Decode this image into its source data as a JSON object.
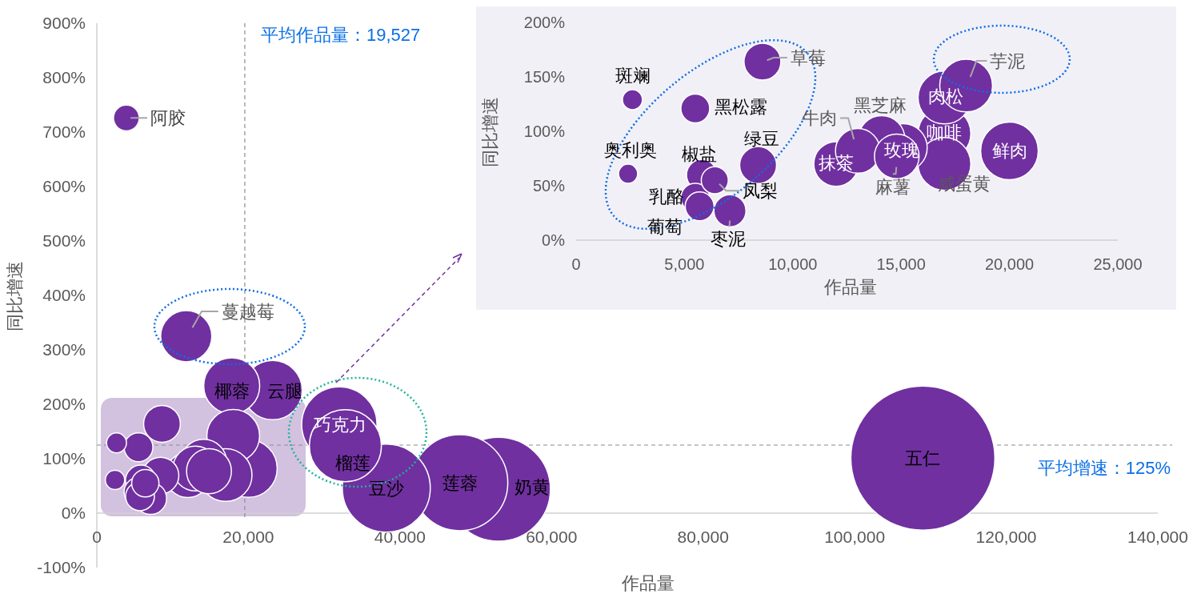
{
  "chart_data": [
    {
      "type": "bubble",
      "xlabel": "作品量",
      "ylabel": "同比增速",
      "color": "#7030a0",
      "x": [
        2600,
        2400,
        8600,
        5500,
        5800,
        6400,
        5500,
        5700,
        7100,
        8400,
        12000,
        13000,
        14100,
        14800,
        null,
        null,
        null,
        18000,
        17000,
        20000,
        3900,
        11800,
        17800,
        23200,
        32000,
        32800,
        38200,
        47900,
        53000,
        109000
      ],
      "values": [
        129,
        61,
        164,
        121,
        60,
        55,
        39,
        31,
        27,
        69,
        70,
        82,
        93,
        77,
        null,
        null,
        null,
        142,
        70,
        82,
        726,
        325,
        234,
        226,
        163,
        124,
        46,
        56,
        44,
        101
      ],
      "sizes": [
        0.019,
        0.018,
        0.065,
        0.04,
        0.045,
        0.036,
        0.04,
        0.04,
        0.049,
        0.065,
        0.097,
        0.097,
        0.104,
        0.097,
        null,
        null,
        null,
        0.134,
        0.134,
        0.16,
        0.032,
        0.126,
        0.151,
        0.169,
        0.273,
        0.25,
        0.373,
        0.444,
        0.52,
        1
      ],
      "xlim": [
        0,
        140000
      ],
      "ylim": [
        -100,
        900
      ],
      "xticks": [
        0,
        {
          "value": 20000,
          "label": "20,000"
        },
        {
          "value": 40000,
          "label": "40,000"
        },
        {
          "value": 60000,
          "label": "60,000"
        },
        {
          "value": 80000,
          "label": "80,000"
        },
        {
          "value": 100000,
          "label": "100,000"
        },
        {
          "value": 120000,
          "label": "120,000"
        },
        {
          "value": 140000,
          "label": "140,000"
        }
      ],
      "yticks": [
        {
          "value": -100,
          "label": "-100%"
        },
        {
          "value": 0,
          "label": "0%"
        },
        {
          "value": 100,
          "label": "100%"
        },
        {
          "value": 200,
          "label": "200%"
        },
        {
          "value": 300,
          "label": "300%"
        },
        {
          "value": 400,
          "label": "400%"
        },
        {
          "value": 500,
          "label": "500%"
        },
        {
          "value": 600,
          "label": "600%"
        },
        {
          "value": 700,
          "label": "700%"
        },
        {
          "value": 800,
          "label": "800%"
        },
        {
          "value": 900,
          "label": "900%"
        }
      ],
      "ref_lines": [
        {
          "axis": "x",
          "value": 19527,
          "label": "平均作品量：19,527"
        },
        {
          "axis": "y",
          "value": 125,
          "label": "平均增速：125%"
        }
      ],
      "annotations": [
        {
          "text": "阿胶",
          "x": 3900,
          "y": 726
        },
        {
          "text": "蔓越莓",
          "x": 11800,
          "y": 325
        },
        {
          "text": "椰蓉",
          "x": 17800,
          "y": 234
        },
        {
          "text": "云腿",
          "x": 23200,
          "y": 226
        },
        {
          "text": "巧克力",
          "x": 32000,
          "y": 163
        },
        {
          "text": "榴莲",
          "x": 32800,
          "y": 124
        },
        {
          "text": "豆沙",
          "x": 38200,
          "y": 46
        },
        {
          "text": "莲蓉",
          "x": 47900,
          "y": 56
        },
        {
          "text": "奶黄",
          "x": 53000,
          "y": 44
        },
        {
          "text": "五仁",
          "x": 109000,
          "y": 101
        }
      ]
    },
    {
      "type": "bubble",
      "xlabel": "作品量",
      "ylabel": "同比增速",
      "color": "#7030a0",
      "x": [
        2600,
        2400,
        8600,
        5500,
        5800,
        6400,
        5500,
        5700,
        7100,
        8400,
        12000,
        13000,
        14100,
        14800,
        15100,
        17000,
        17000,
        18000,
        17000,
        20000
      ],
      "values": [
        129,
        61,
        164,
        121,
        60,
        55,
        39,
        31,
        27,
        69,
        70,
        82,
        93,
        77,
        85,
        98,
        131,
        142,
        70,
        82
      ],
      "sizes": [
        0.12,
        0.11,
        0.41,
        0.25,
        0.28,
        0.22,
        0.25,
        0.25,
        0.31,
        0.41,
        0.6,
        0.6,
        0.65,
        0.6,
        0.69,
        0.84,
        0.84,
        0.84,
        0.84,
        1
      ],
      "xlim": [
        0,
        25000
      ],
      "ylim": [
        0,
        200
      ],
      "xticks": [
        0,
        {
          "value": 5000,
          "label": "5,000"
        },
        {
          "value": 10000,
          "label": "10,000"
        },
        {
          "value": 15000,
          "label": "15,000"
        },
        {
          "value": 20000,
          "label": "20,000"
        },
        {
          "value": 25000,
          "label": "25,000"
        }
      ],
      "yticks": [
        {
          "value": 0,
          "label": "0%"
        },
        {
          "value": 50,
          "label": "50%"
        },
        {
          "value": 100,
          "label": "100%"
        },
        {
          "value": 150,
          "label": "150%"
        },
        {
          "value": 200,
          "label": "200%"
        }
      ],
      "annotations": [
        {
          "text": "斑斓",
          "x": 2600,
          "y": 129
        },
        {
          "text": "奥利奥",
          "x": 2400,
          "y": 61
        },
        {
          "text": "草莓",
          "x": 8600,
          "y": 164
        },
        {
          "text": "黑松露",
          "x": 5500,
          "y": 121
        },
        {
          "text": "椒盐",
          "x": 5800,
          "y": 60
        },
        {
          "text": "凤梨",
          "x": 6400,
          "y": 55
        },
        {
          "text": "乳酪",
          "x": 5500,
          "y": 39
        },
        {
          "text": "葡萄",
          "x": 5700,
          "y": 31
        },
        {
          "text": "枣泥",
          "x": 7100,
          "y": 27
        },
        {
          "text": "绿豆",
          "x": 8400,
          "y": 69
        },
        {
          "text": "抹茶",
          "x": 12000,
          "y": 70
        },
        {
          "text": "牛肉",
          "x": 13000,
          "y": 82
        },
        {
          "text": "黑芝麻",
          "x": 14100,
          "y": 93
        },
        {
          "text": "麻薯",
          "x": 14800,
          "y": 77
        },
        {
          "text": "玫瑰",
          "x": 15100,
          "y": 85
        },
        {
          "text": "咖啡",
          "x": 17000,
          "y": 98
        },
        {
          "text": "肉松",
          "x": 17000,
          "y": 131
        },
        {
          "text": "芋泥",
          "x": 18000,
          "y": 142
        },
        {
          "text": "咸蛋黄",
          "x": 17000,
          "y": 70
        },
        {
          "text": "鲜肉",
          "x": 20000,
          "y": 82
        }
      ]
    }
  ]
}
